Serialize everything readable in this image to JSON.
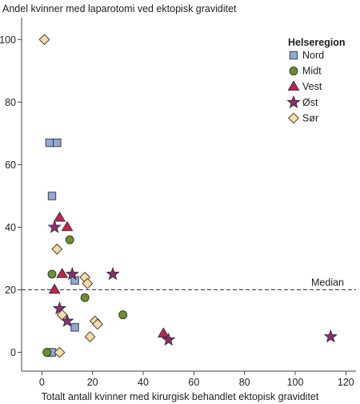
{
  "chart_data": {
    "type": "scatter",
    "title": "",
    "ylabel": "Andel kvinner med laparotomi ved ektopisk graviditet",
    "xlabel": "Totalt antall kvinner med kirurgisk behandlet ektopisk graviditet",
    "xlim": [
      -8,
      124
    ],
    "ylim": [
      -6,
      107
    ],
    "xticks": [
      0,
      20,
      40,
      60,
      80,
      100,
      120
    ],
    "yticks": [
      0,
      20,
      40,
      60,
      80,
      100
    ],
    "grid": false,
    "legend_title": "Helseregion",
    "legend_position": "top-right",
    "reference_line": {
      "label": "Median",
      "y": 20,
      "style": "dashed"
    },
    "series": [
      {
        "name": "Nord",
        "marker": "square",
        "color": "#8fa8d6",
        "points": [
          [
            3,
            67
          ],
          [
            6,
            67
          ],
          [
            4,
            50
          ],
          [
            13,
            23
          ],
          [
            13,
            8
          ],
          [
            3,
            0
          ],
          [
            4,
            0
          ]
        ]
      },
      {
        "name": "Midt",
        "marker": "circle",
        "color": "#6b8f2a",
        "points": [
          [
            11,
            36
          ],
          [
            4,
            25
          ],
          [
            17,
            17.5
          ],
          [
            32,
            12
          ],
          [
            2,
            0
          ]
        ]
      },
      {
        "name": "Vest",
        "marker": "triangle",
        "color": "#c0244b",
        "points": [
          [
            7,
            43
          ],
          [
            10,
            40
          ],
          [
            8,
            25
          ],
          [
            5,
            20
          ],
          [
            48,
            6
          ]
        ]
      },
      {
        "name": "Øst",
        "marker": "star",
        "color": "#8b2c73",
        "points": [
          [
            5,
            40
          ],
          [
            12,
            25
          ],
          [
            28,
            25
          ],
          [
            7,
            14
          ],
          [
            10,
            10
          ],
          [
            50,
            4
          ],
          [
            114,
            5
          ]
        ]
      },
      {
        "name": "Sør",
        "marker": "diamond",
        "color": "#f6dca2",
        "points": [
          [
            1,
            100
          ],
          [
            6,
            33
          ],
          [
            17,
            24
          ],
          [
            18,
            22
          ],
          [
            8,
            12
          ],
          [
            21,
            10
          ],
          [
            22,
            9
          ],
          [
            19,
            5
          ],
          [
            7,
            0
          ]
        ]
      }
    ]
  }
}
